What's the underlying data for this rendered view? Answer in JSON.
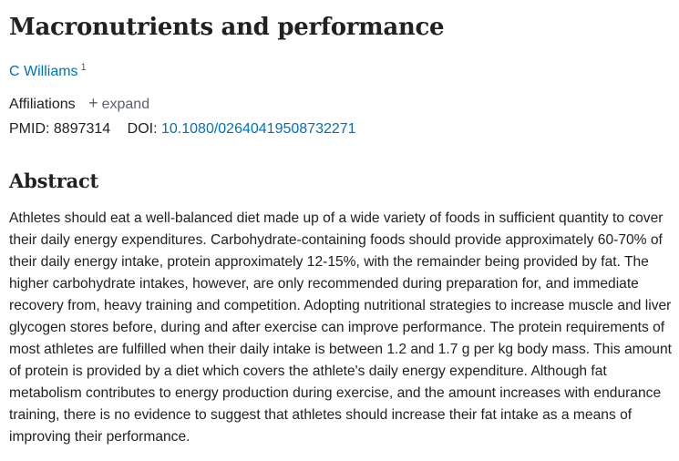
{
  "article": {
    "title": "Macronutrients and performance",
    "authors": [
      {
        "name": "C Williams",
        "affiliation_ref": "1"
      }
    ],
    "affiliations_label": "Affiliations",
    "expand_label": "expand",
    "pmid_label": "PMID:",
    "pmid_value": "8897314",
    "doi_label": "DOI:",
    "doi_value": "10.1080/02640419508732271"
  },
  "abstract": {
    "heading": "Abstract",
    "text": "Athletes should eat a well-balanced diet made up of a wide variety of foods in sufficient quantity to cover their daily energy expenditures. Carbohydrate-containing foods should provide approximately 60-70% of their daily energy intake, protein approximately 12-15%, with the remainder being provided by fat. The higher carbohydrate intakes, however, are only recommended during preparation for, and immediate recovery from, heavy training and competition. Adopting nutritional strategies to increase muscle and liver glycogen stores before, during and after exercise can improve performance. The protein requirements of most athletes are fulfilled when their daily intake is between 1.2 and 1.7 g per kg body mass. This amount of protein is provided by a diet which covers the athlete's daily energy expenditure. Although fat metabolism contributes to energy production during exercise, and the amount increases with endurance training, there is no evidence to suggest that athletes should increase their fat intake as a means of improving their performance."
  },
  "colors": {
    "link": "#0071bc",
    "text": "#212121",
    "muted": "#5b616b"
  },
  "icons": {
    "expand": "plus-icon"
  }
}
